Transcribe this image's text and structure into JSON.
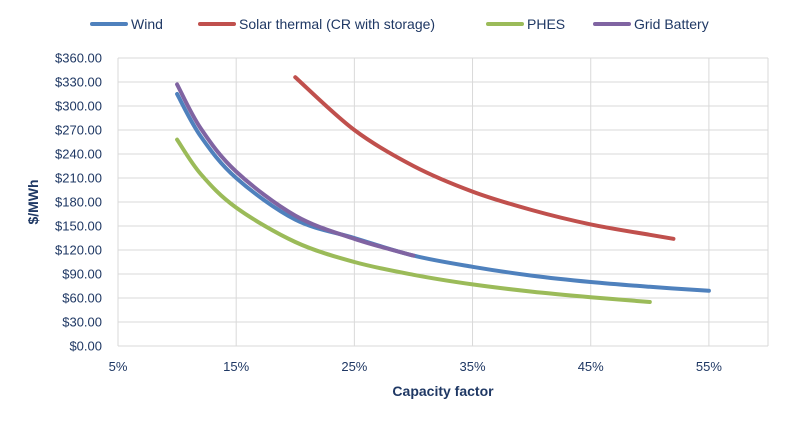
{
  "chart_data": {
    "type": "line",
    "title": "",
    "xlabel": "Capacity factor",
    "ylabel": "$/MWh",
    "xlim": [
      0.05,
      0.6
    ],
    "ylim": [
      0,
      360
    ],
    "x_ticks": [
      0.05,
      0.15,
      0.25,
      0.35,
      0.45,
      0.55
    ],
    "x_tick_labels": [
      "5%",
      "15%",
      "25%",
      "35%",
      "45%",
      "55%"
    ],
    "y_ticks": [
      0,
      30,
      60,
      90,
      120,
      150,
      180,
      210,
      240,
      270,
      300,
      330,
      360
    ],
    "y_tick_labels": [
      "$0.00",
      "$30.00",
      "$60.00",
      "$90.00",
      "$120.00",
      "$150.00",
      "$180.00",
      "$210.00",
      "$240.00",
      "$270.00",
      "$300.00",
      "$330.00",
      "$360.00"
    ],
    "grid": true,
    "legend_position": "top",
    "series": [
      {
        "name": "Wind",
        "color": "#4f81bd",
        "x": [
          0.1,
          0.12,
          0.15,
          0.2,
          0.25,
          0.3,
          0.35,
          0.4,
          0.45,
          0.5,
          0.55
        ],
        "y": [
          315,
          262,
          210,
          158,
          135,
          113,
          99,
          88,
          80,
          74,
          69
        ]
      },
      {
        "name": "Solar thermal (CR with storage)",
        "color": "#c0504d",
        "x": [
          0.2,
          0.25,
          0.3,
          0.35,
          0.4,
          0.45,
          0.5,
          0.52
        ],
        "y": [
          336,
          270,
          225,
          193,
          170,
          152,
          139,
          134
        ]
      },
      {
        "name": "PHES",
        "color": "#9bbb59",
        "x": [
          0.1,
          0.12,
          0.15,
          0.2,
          0.25,
          0.3,
          0.35,
          0.4,
          0.45,
          0.5
        ],
        "y": [
          258,
          215,
          173,
          130,
          105,
          89,
          77,
          68,
          61,
          55
        ]
      },
      {
        "name": "Grid Battery",
        "color": "#8064a2",
        "x": [
          0.1,
          0.12,
          0.15,
          0.2,
          0.25,
          0.3
        ],
        "y": [
          327,
          272,
          218,
          163,
          134,
          113
        ]
      }
    ]
  }
}
